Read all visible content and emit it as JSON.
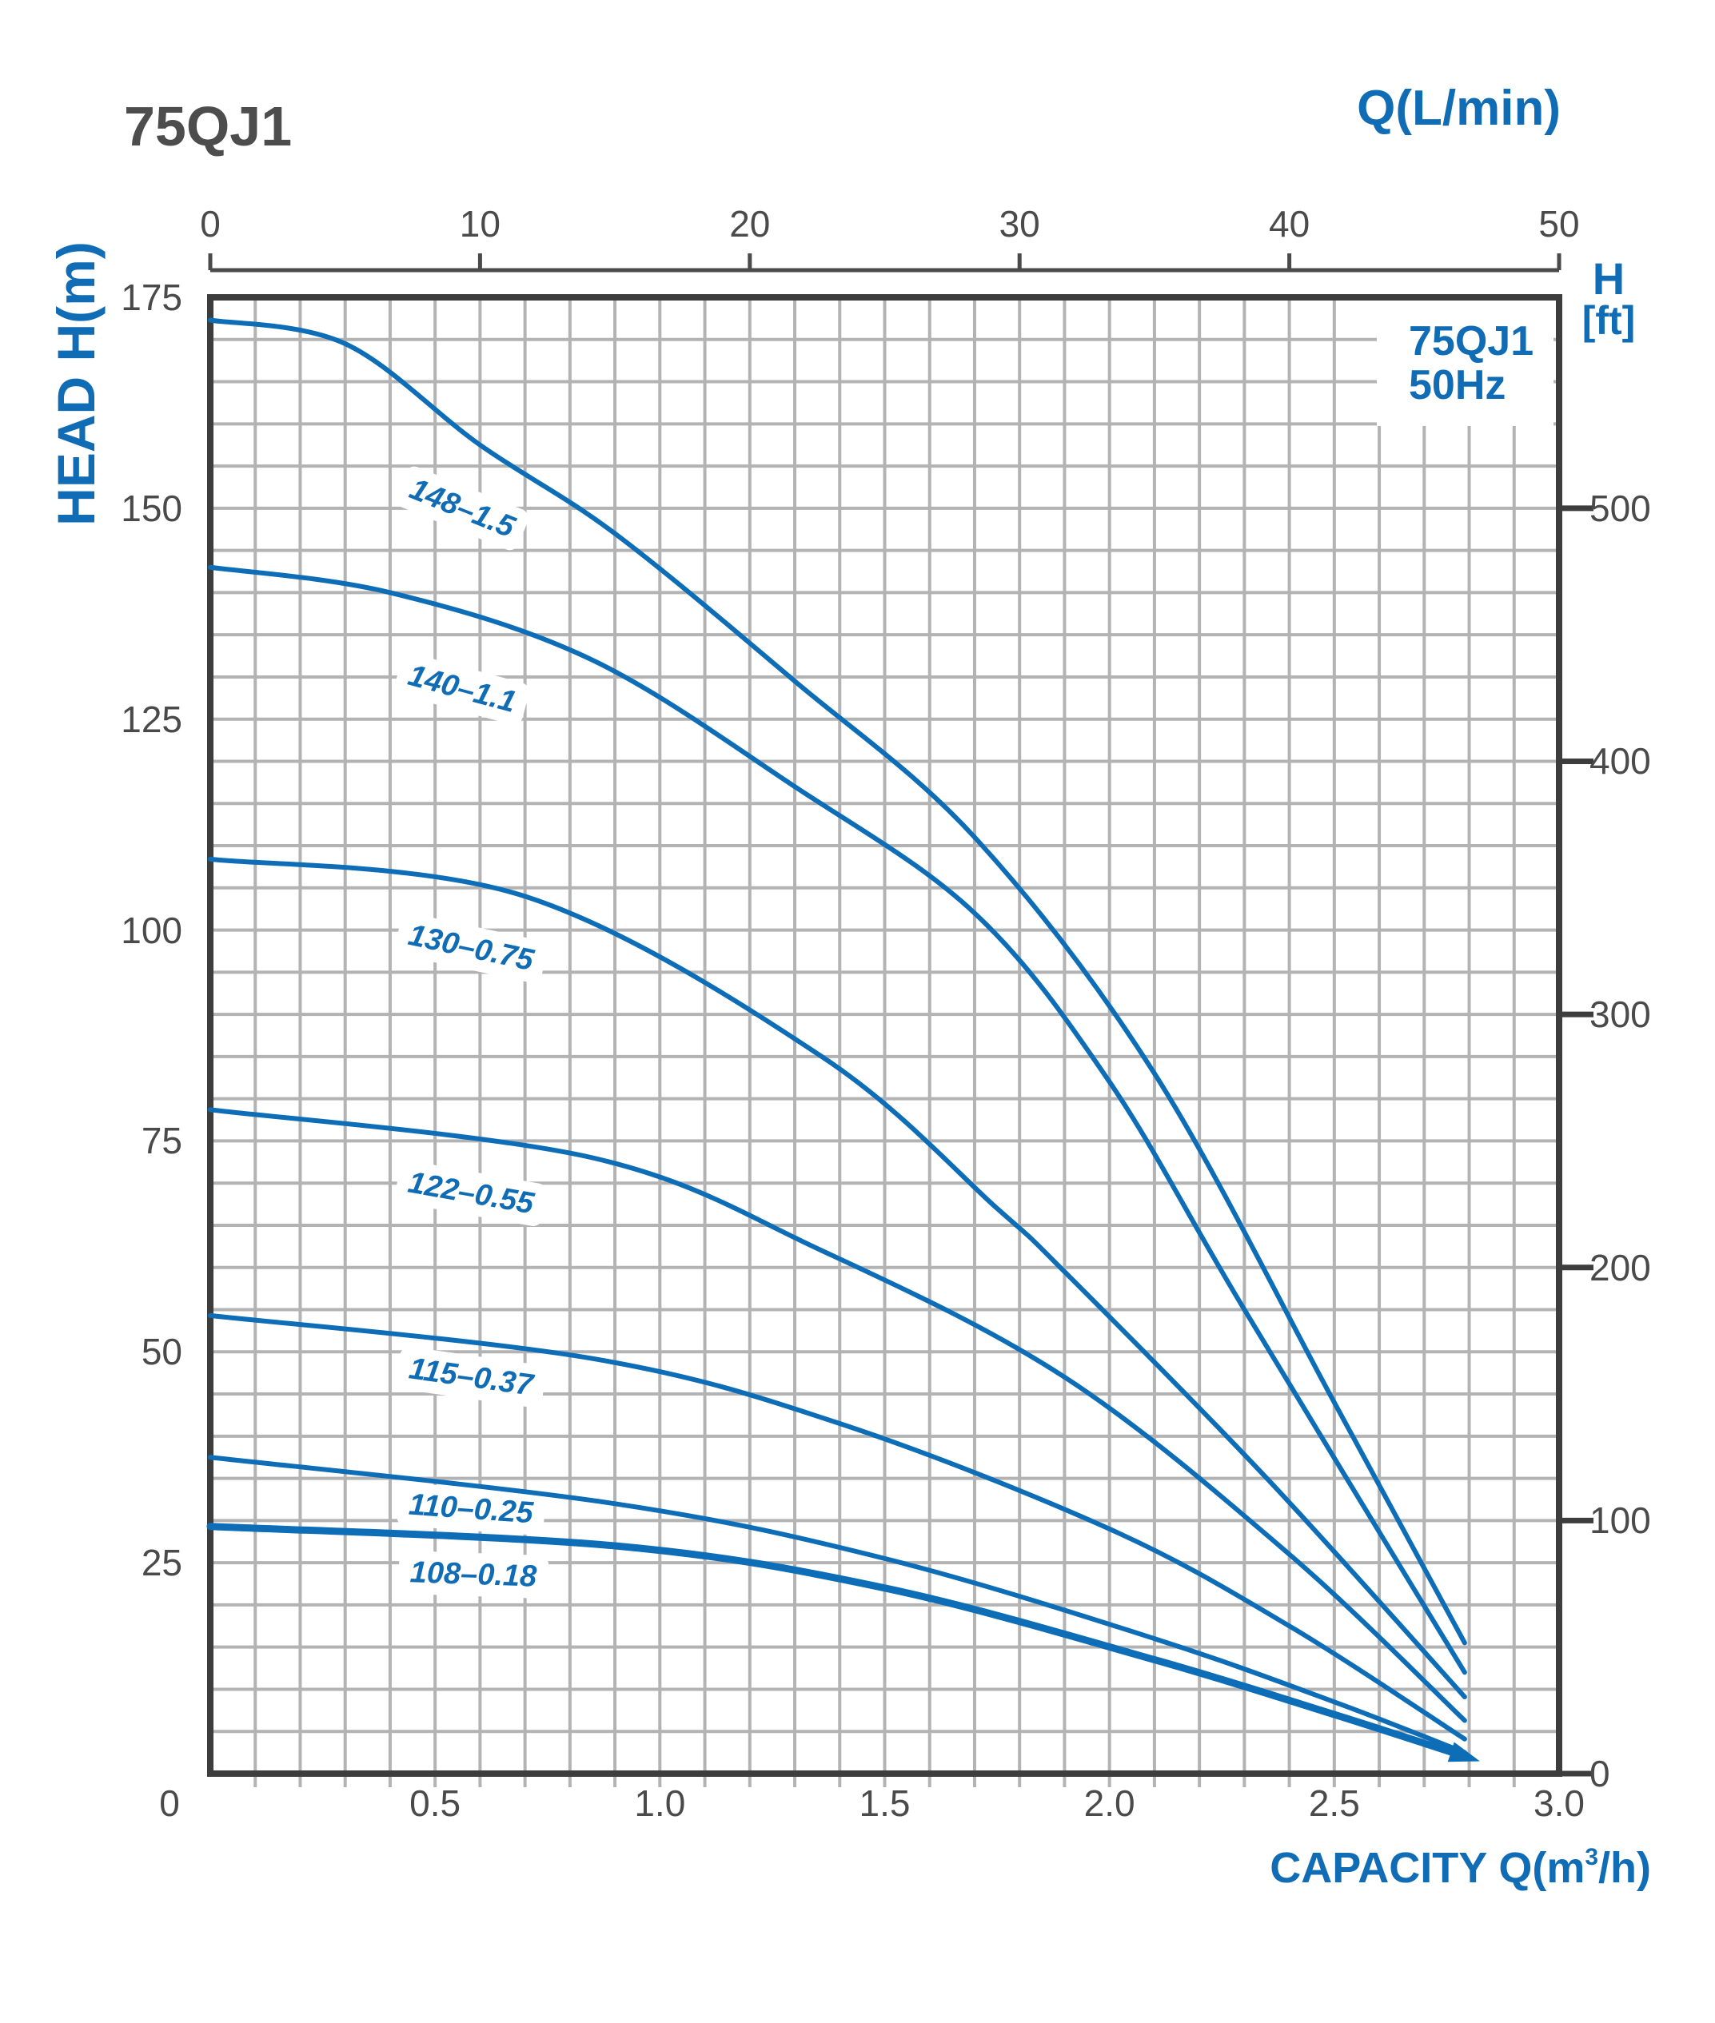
{
  "title": "75QJ1",
  "legend": {
    "model": "75QJ1",
    "frequency": "50Hz"
  },
  "axes": {
    "top": {
      "title": "Q(L/min)",
      "ticks": [
        "0",
        "10",
        "20",
        "30",
        "40",
        "50"
      ],
      "range": [
        0,
        50
      ]
    },
    "bottom": {
      "title_prefix": "CAPACITY Q(m",
      "title_sup": "3",
      "title_suffix": "/h)",
      "ticks": [
        "0",
        "0.5",
        "1.0",
        "1.5",
        "2.0",
        "2.5",
        "3.0"
      ],
      "range": [
        0,
        3.0
      ]
    },
    "left": {
      "title": "HEAD H(m)",
      "ticks": [
        "175",
        "150",
        "125",
        "100",
        "75",
        "50",
        "25"
      ],
      "range": [
        0,
        175
      ]
    },
    "right": {
      "title_line1": "H",
      "title_line2": "[ft]",
      "ticks": [
        "500",
        "400",
        "300",
        "200",
        "100",
        "0"
      ],
      "range": [
        0,
        575
      ]
    }
  },
  "colors": {
    "accent_blue": "#106cb4",
    "curve_blue": "#0e6db7",
    "text_gray": "#4a4a4a",
    "grid_gray": "#b3b3b3",
    "border_gray": "#3d3d3d"
  },
  "chart_data": {
    "type": "line",
    "title": "75QJ1 50Hz submersible pump performance curves",
    "xlabel": "CAPACITY Q(m3/h)",
    "ylabel": "HEAD H(m)",
    "x_secondary_axis": "Q(L/min), 0 to 50",
    "y_secondary_axis": "H [ft], 0 to 500",
    "xlim": [
      0,
      3.0
    ],
    "ylim": [
      0,
      175
    ],
    "grid": true,
    "x_grid_step": 0.1,
    "y_grid_step": 5,
    "series": [
      {
        "name": "148–1.5",
        "label": {
          "q": 0.56,
          "h": 150.0,
          "angle": 22
        },
        "points": [
          [
            0,
            172.3
          ],
          [
            0.3,
            169.5
          ],
          [
            0.6,
            157.5
          ],
          [
            0.9,
            147
          ],
          [
            1.3,
            129.5
          ],
          [
            1.7,
            111
          ],
          [
            2.1,
            83
          ],
          [
            2.5,
            44
          ],
          [
            2.79,
            15.5
          ]
        ]
      },
      {
        "name": "140–1.1",
        "label": {
          "q": 0.56,
          "h": 128.6,
          "angle": 15
        },
        "points": [
          [
            0,
            143
          ],
          [
            0.4,
            140
          ],
          [
            0.85,
            132
          ],
          [
            1.3,
            117
          ],
          [
            1.7,
            102
          ],
          [
            2.0,
            82
          ],
          [
            2.3,
            55
          ],
          [
            2.79,
            12
          ]
        ]
      },
      {
        "name": "130–0.75",
        "label": {
          "q": 0.58,
          "h": 97.9,
          "angle": 12
        },
        "points": [
          [
            0,
            108.4
          ],
          [
            0.7,
            104
          ],
          [
            1.36,
            85
          ],
          [
            1.75,
            67
          ],
          [
            1.9,
            59.5
          ],
          [
            2.35,
            35
          ],
          [
            2.79,
            9.1
          ]
        ]
      },
      {
        "name": "122–0.55",
        "label": {
          "q": 0.58,
          "h": 68.8,
          "angle": 10
        },
        "points": [
          [
            0,
            78.7
          ],
          [
            0.85,
            73
          ],
          [
            1.36,
            62
          ],
          [
            1.9,
            47
          ],
          [
            2.4,
            26
          ],
          [
            2.79,
            6.3
          ]
        ]
      },
      {
        "name": "115–0.37",
        "label": {
          "q": 0.58,
          "h": 47.0,
          "angle": 8
        },
        "points": [
          [
            0,
            54.3
          ],
          [
            0.85,
            49.2
          ],
          [
            1.4,
            41.5
          ],
          [
            2.0,
            29
          ],
          [
            2.4,
            17.5
          ],
          [
            2.79,
            4.1
          ]
        ]
      },
      {
        "name": "110–0.25",
        "label": {
          "q": 0.58,
          "h": 31.4,
          "angle": 4
        },
        "points": [
          [
            0,
            37.5
          ],
          [
            0.9,
            32
          ],
          [
            1.5,
            25.5
          ],
          [
            2.1,
            16
          ],
          [
            2.5,
            8.5
          ],
          [
            2.79,
            2.5
          ]
        ]
      },
      {
        "name": "108–0.18",
        "label": {
          "q": 0.585,
          "h": 23.6,
          "angle": 2,
          "thick": true
        },
        "points": [
          [
            0,
            29.3
          ],
          [
            0.9,
            27
          ],
          [
            1.5,
            22
          ],
          [
            2.1,
            13.5
          ],
          [
            2.5,
            7
          ],
          [
            2.79,
            2.05
          ]
        ]
      }
    ]
  }
}
